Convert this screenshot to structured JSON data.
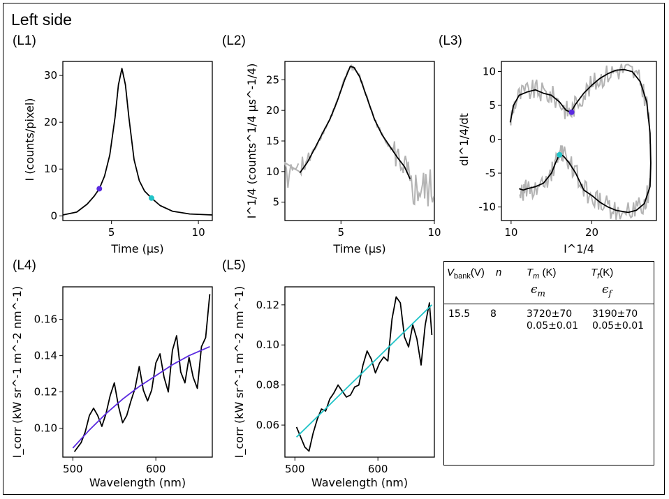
{
  "title": "Left side",
  "panels": [
    "(L1)",
    "(L2)",
    "(L3)",
    "(L4)",
    "(L5)"
  ],
  "table": {
    "headers": {
      "vbank_sym": "V",
      "vbank_sub": "bank",
      "vbank_unit": "(V)",
      "n": "n",
      "tm_sym": "T",
      "tm_sub": "m",
      "tm_unit": "(K)",
      "tf_sym": "T",
      "tf_sub": "f",
      "tf_unit": "(K)",
      "em_sym": "ϵ",
      "em_sub": "m",
      "ef_sym": "ϵ",
      "ef_sub": "f"
    },
    "row": {
      "vbank": "15.5",
      "n": "8",
      "tm": "3720±70",
      "em": "0.05±0.01",
      "tf": "3190±70",
      "ef": "0.05±0.01"
    }
  },
  "colors": {
    "black": "#000000",
    "gray": "#b3b3b3",
    "purple": "#5b2be0",
    "cyan": "#22c4c8"
  },
  "chart_data": [
    {
      "id": "L1",
      "type": "line",
      "xlabel": "Time (μs)",
      "ylabel": "I (counts/pixel)",
      "xlim": [
        2.2,
        10.8
      ],
      "ylim": [
        -1,
        33
      ],
      "xticks": [
        "5",
        "10"
      ],
      "yticks": [
        "0",
        "10",
        "20",
        "30"
      ],
      "x": [
        2.2,
        3.0,
        3.6,
        4.0,
        4.3,
        4.6,
        4.9,
        5.2,
        5.4,
        5.6,
        5.8,
        6.0,
        6.3,
        6.6,
        6.9,
        7.3,
        7.8,
        8.5,
        9.5,
        10.8
      ],
      "series": [
        {
          "name": "signal",
          "color": "#000000",
          "values": [
            0.2,
            0.8,
            2.5,
            4.2,
            5.8,
            8.5,
            13,
            21,
            28,
            31.5,
            28,
            21,
            12,
            7.5,
            5.3,
            3.8,
            2.2,
            1.0,
            0.4,
            0.2
          ]
        }
      ],
      "markers": [
        {
          "x": 4.3,
          "y": 5.8,
          "color": "#5b2be0"
        },
        {
          "x": 7.3,
          "y": 3.8,
          "color": "#22c4c8"
        }
      ]
    },
    {
      "id": "L2",
      "type": "line",
      "xlabel": "Time (μs)",
      "ylabel": "I^1/4 (counts^1/4 μs^-1/4)",
      "xlim": [
        2.0,
        10.0
      ],
      "ylim": [
        2,
        28
      ],
      "xticks": [
        "5",
        "10"
      ],
      "yticks": [
        "5",
        "10",
        "15",
        "20",
        "25"
      ],
      "x": [
        2.8,
        3.2,
        3.6,
        4.0,
        4.4,
        4.8,
        5.2,
        5.5,
        5.7,
        6.0,
        6.4,
        6.8,
        7.2,
        7.6,
        8.0,
        8.4,
        8.7
      ],
      "series": [
        {
          "name": "fit",
          "color": "#000000",
          "values": [
            9.8,
            11.5,
            13.8,
            16.2,
            18.5,
            21.5,
            25.0,
            27.2,
            27.0,
            25.5,
            22.0,
            18.5,
            16.0,
            14.2,
            12.4,
            10.8,
            8.8
          ]
        }
      ]
    },
    {
      "id": "L3",
      "type": "line",
      "xlabel": "I^1/4",
      "ylabel": "dI^1/4/dt",
      "xlim": [
        8.8,
        28.0
      ],
      "ylim": [
        -12,
        11.5
      ],
      "xticks": [
        "10",
        "20"
      ],
      "yticks": [
        "10",
        "5",
        "0",
        "-5",
        "-10"
      ],
      "x": [
        9.9,
        10.3,
        11.0,
        12.0,
        13.0,
        14.0,
        15.0,
        16.0,
        16.8,
        17.4,
        18.0,
        19.0,
        20.0,
        21.0,
        22.0,
        23.0,
        24.0,
        25.0,
        26.0,
        26.8,
        27.2,
        27.3,
        27.2,
        26.5,
        25.5,
        24.5,
        23.0,
        22.0,
        21.0,
        20.0,
        19.0,
        18.0,
        17.2,
        16.5,
        16.0,
        15.5,
        15.0,
        14.0,
        13.0,
        12.0,
        11.5,
        11.0
      ],
      "series": [
        {
          "name": "trajectory",
          "color": "#000000",
          "values": [
            2.5,
            5.0,
            6.5,
            7.0,
            7.3,
            6.8,
            6.5,
            5.5,
            4.3,
            4.0,
            5.2,
            6.8,
            8.0,
            9.0,
            9.7,
            10.2,
            10.3,
            10.0,
            8.5,
            5.5,
            1.0,
            -3.5,
            -7.0,
            -9.5,
            -10.5,
            -10.8,
            -10.5,
            -10.0,
            -9.3,
            -8.3,
            -7.5,
            -5.0,
            -3.5,
            -2.5,
            -2.2,
            -3.5,
            -5.0,
            -6.5,
            -7.0,
            -7.3,
            -7.5,
            -7.3
          ]
        }
      ],
      "markers": [
        {
          "x": 17.5,
          "y": 4.0,
          "color": "#5b2be0"
        },
        {
          "x": 16.0,
          "y": -2.3,
          "color": "#22c4c8"
        }
      ]
    },
    {
      "id": "L4",
      "type": "line",
      "xlabel": "Wavelength (nm)",
      "ylabel": "I_corr (kW sr^-1 m^-2 nm^-1)",
      "xlim": [
        488,
        668
      ],
      "ylim": [
        0.084,
        0.178
      ],
      "xticks": [
        "500",
        "600"
      ],
      "yticks": [
        "0.10",
        "0.12",
        "0.14",
        "0.16"
      ],
      "x": [
        502,
        510,
        515,
        520,
        525,
        530,
        535,
        540,
        545,
        550,
        555,
        560,
        565,
        570,
        575,
        580,
        585,
        590,
        595,
        600,
        605,
        610,
        615,
        620,
        625,
        630,
        635,
        640,
        645,
        650,
        655,
        660,
        665
      ],
      "series": [
        {
          "name": "measured",
          "color": "#000000",
          "values": [
            0.087,
            0.092,
            0.098,
            0.107,
            0.111,
            0.107,
            0.101,
            0.108,
            0.118,
            0.125,
            0.112,
            0.103,
            0.107,
            0.115,
            0.122,
            0.134,
            0.121,
            0.115,
            0.121,
            0.136,
            0.141,
            0.128,
            0.12,
            0.143,
            0.151,
            0.131,
            0.125,
            0.139,
            0.128,
            0.122,
            0.145,
            0.15,
            0.174
          ]
        },
        {
          "name": "fit",
          "color": "#5b2be0",
          "x": [
            500,
            520,
            540,
            560,
            580,
            600,
            620,
            640,
            665
          ],
          "values": [
            0.089,
            0.099,
            0.108,
            0.116,
            0.123,
            0.129,
            0.135,
            0.14,
            0.145
          ]
        }
      ]
    },
    {
      "id": "L5",
      "type": "line",
      "xlabel": "Wavelength (nm)",
      "ylabel": "I_corr (kW sr^-1 m^-2 nm^-1)",
      "xlim": [
        488,
        668
      ],
      "ylim": [
        0.044,
        0.129
      ],
      "xticks": [
        "500",
        "600"
      ],
      "yticks": [
        "0.06",
        "0.08",
        "0.10",
        "0.12"
      ],
      "x": [
        502,
        507,
        512,
        517,
        522,
        527,
        532,
        537,
        542,
        547,
        552,
        557,
        562,
        567,
        572,
        577,
        582,
        587,
        592,
        597,
        602,
        607,
        612,
        617,
        622,
        627,
        632,
        637,
        642,
        647,
        652,
        657,
        662,
        665
      ],
      "series": [
        {
          "name": "measured",
          "color": "#000000",
          "values": [
            0.059,
            0.054,
            0.049,
            0.047,
            0.056,
            0.063,
            0.068,
            0.067,
            0.073,
            0.076,
            0.08,
            0.077,
            0.074,
            0.075,
            0.079,
            0.08,
            0.09,
            0.097,
            0.093,
            0.086,
            0.091,
            0.094,
            0.092,
            0.113,
            0.124,
            0.121,
            0.104,
            0.099,
            0.11,
            0.103,
            0.09,
            0.11,
            0.121,
            0.105
          ]
        },
        {
          "name": "fit",
          "color": "#22c4c8",
          "x": [
            502,
            665
          ],
          "values": [
            0.054,
            0.12
          ]
        }
      ]
    }
  ]
}
